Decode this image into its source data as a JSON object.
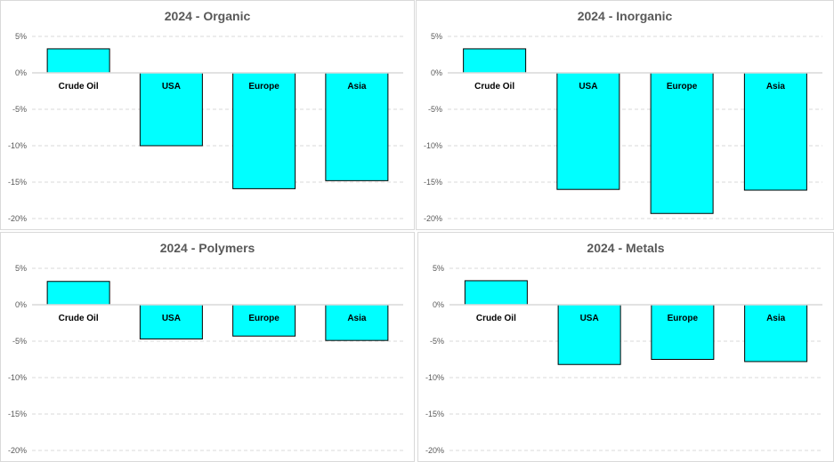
{
  "chart_data": [
    {
      "type": "bar",
      "title": "2024 - Organic",
      "categories": [
        "Crude Oil",
        "USA",
        "Europe",
        "Asia"
      ],
      "values": [
        3.3,
        -10.0,
        -15.9,
        -14.8
      ],
      "ylim": [
        -20,
        5
      ],
      "yticks": [
        "5%",
        "0%",
        "-5%",
        "-10%",
        "-15%",
        "-20%"
      ],
      "xlabel": "",
      "ylabel": "",
      "grid": true
    },
    {
      "type": "bar",
      "title": "2024 - Inorganic",
      "categories": [
        "Crude Oil",
        "USA",
        "Europe",
        "Asia"
      ],
      "values": [
        3.3,
        -16.0,
        -19.3,
        -16.1
      ],
      "ylim": [
        -20,
        5
      ],
      "yticks": [
        "5%",
        "0%",
        "-5%",
        "-10%",
        "-15%",
        "-20%"
      ],
      "xlabel": "",
      "ylabel": "",
      "grid": true
    },
    {
      "type": "bar",
      "title": "2024 - Polymers",
      "categories": [
        "Crude Oil",
        "USA",
        "Europe",
        "Asia"
      ],
      "values": [
        3.2,
        -4.7,
        -4.3,
        -4.9
      ],
      "ylim": [
        -20,
        5
      ],
      "yticks": [
        "5%",
        "0%",
        "-5%",
        "-10%",
        "-15%",
        "-20%"
      ],
      "xlabel": "",
      "ylabel": "",
      "grid": true
    },
    {
      "type": "bar",
      "title": "2024 - Metals",
      "categories": [
        "Crude Oil",
        "USA",
        "Europe",
        "Asia"
      ],
      "values": [
        3.3,
        -8.2,
        -7.5,
        -7.8
      ],
      "ylim": [
        -20,
        5
      ],
      "yticks": [
        "5%",
        "0%",
        "-5%",
        "-10%",
        "-15%",
        "-20%"
      ],
      "xlabel": "",
      "ylabel": "",
      "grid": true
    }
  ],
  "colors": {
    "bar_fill": "#00FFFF",
    "bar_stroke": "#000000",
    "grid": "#d9d9d9"
  }
}
